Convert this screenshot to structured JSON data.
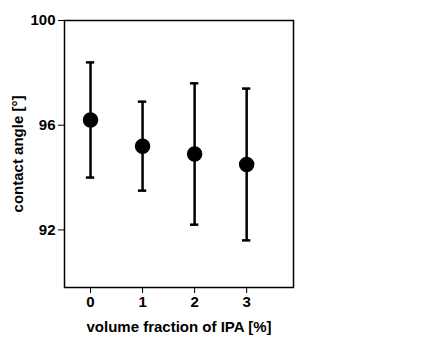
{
  "chart_data": {
    "type": "scatter",
    "x": [
      0,
      1,
      2,
      3
    ],
    "values": [
      96.2,
      95.2,
      94.9,
      94.5
    ],
    "errors": [
      2.2,
      1.7,
      2.7,
      2.9
    ],
    "xlabel": "volume fraction of IPA [%]",
    "ylabel": "contact angle [°]",
    "xlim": [
      -0.5,
      3.9
    ],
    "ylim": [
      89.8,
      100
    ],
    "xticks": [
      0,
      1,
      2,
      3
    ],
    "yticks": [
      92,
      96,
      100
    ],
    "color": "#000000",
    "marker": "circle",
    "grid": false
  }
}
